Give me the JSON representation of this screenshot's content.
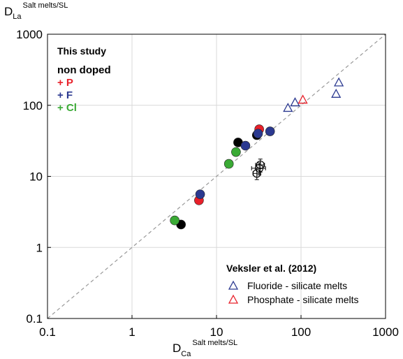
{
  "chart_data": {
    "type": "scatter",
    "title": "",
    "xlabel": {
      "main": "D",
      "sub": "Ca",
      "sup": "Salt melts/SL"
    },
    "ylabel": {
      "main": "D",
      "sub": "La",
      "sup": "Salt melts/SL"
    },
    "x_scale": "log",
    "y_scale": "log",
    "xlim": [
      0.1,
      1000
    ],
    "ylim": [
      0.1,
      1000
    ],
    "x_ticks": [
      "0.1",
      "1",
      "10",
      "100",
      "1000"
    ],
    "y_ticks": [
      "0.1",
      "1",
      "10",
      "100",
      "1000"
    ],
    "grid": true,
    "reference_line": {
      "style": "dashed",
      "color": "#999999",
      "points": [
        [
          0.1,
          0.1
        ],
        [
          1000,
          1000
        ]
      ]
    },
    "legend_study": {
      "title": "This study",
      "placement": "top-left",
      "entries": [
        {
          "label": "non doped",
          "color": "#000000"
        },
        {
          "label": "+ P",
          "color": "#e8202a"
        },
        {
          "label": "+ F",
          "color": "#2b3990"
        },
        {
          "label": "+ Cl",
          "color": "#3aaa35"
        }
      ]
    },
    "legend_veksler": {
      "title": "Veksler et al. (2012)",
      "placement": "bottom-right",
      "entries": [
        {
          "label": "Fluoride - silicate melts",
          "color": "#2b3990"
        },
        {
          "label": "Phosphate - silicate melts",
          "color": "#e8202a"
        }
      ]
    },
    "series": [
      {
        "group": "non doped",
        "marker": "circle",
        "color": "#000000",
        "points": [
          [
            3.8,
            2.1
          ],
          [
            18,
            30
          ],
          [
            30,
            38
          ]
        ]
      },
      {
        "group": "+ P",
        "marker": "circle",
        "color": "#e8202a",
        "points": [
          [
            6.2,
            4.6
          ],
          [
            32,
            46
          ]
        ]
      },
      {
        "group": "+ F",
        "marker": "circle",
        "color": "#2b3990",
        "points": [
          [
            6.4,
            5.6
          ],
          [
            22,
            27
          ],
          [
            31,
            40
          ],
          [
            43,
            43
          ]
        ]
      },
      {
        "group": "+ Cl",
        "marker": "circle",
        "color": "#3aaa35",
        "points": [
          [
            3.2,
            2.4
          ],
          [
            14,
            15
          ],
          [
            17,
            22
          ]
        ]
      },
      {
        "group": "open",
        "marker": "open-circle",
        "color": "#000000",
        "points": [
          [
            30,
            11,
            3,
            2
          ],
          [
            32,
            13,
            6,
            2.5
          ],
          [
            33,
            14.5,
            4,
            3
          ]
        ]
      },
      {
        "group": "Fluoride - silicate melts",
        "marker": "open-triangle",
        "color": "#2b3990",
        "points": [
          [
            70,
            92
          ],
          [
            85,
            110
          ],
          [
            260,
            145
          ],
          [
            280,
            210
          ]
        ]
      },
      {
        "group": "Phosphate - silicate melts",
        "marker": "open-triangle",
        "color": "#e8202a",
        "points": [
          [
            105,
            120
          ]
        ]
      }
    ]
  }
}
